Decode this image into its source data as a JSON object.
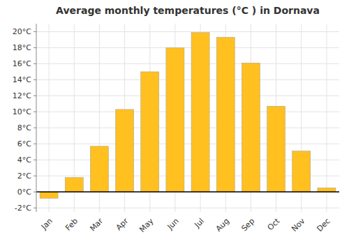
{
  "chart_data": {
    "type": "bar",
    "title": "Average monthly temperatures (°C ) in Dornava",
    "categories": [
      "Jan",
      "Feb",
      "Mar",
      "Apr",
      "May",
      "Jun",
      "Jul",
      "Aug",
      "Sep",
      "Oct",
      "Nov",
      "Dec"
    ],
    "values": [
      -0.8,
      1.8,
      5.7,
      10.3,
      15.0,
      18.0,
      19.9,
      19.3,
      16.1,
      10.7,
      5.1,
      0.5
    ],
    "color": "#FFC020",
    "ylim": [
      -2.5,
      21
    ],
    "yticks": [
      {
        "value": -2,
        "label": "-2°C"
      },
      {
        "value": 0,
        "label": "0°C"
      },
      {
        "value": 2,
        "label": "2°C"
      },
      {
        "value": 4,
        "label": "4°C"
      },
      {
        "value": 6,
        "label": "6°C"
      },
      {
        "value": 8,
        "label": "8°C"
      },
      {
        "value": 10,
        "label": "10°C"
      },
      {
        "value": 12,
        "label": "12°C"
      },
      {
        "value": 14,
        "label": "14°C"
      },
      {
        "value": 16,
        "label": "16°C"
      },
      {
        "value": 18,
        "label": "18°C"
      },
      {
        "value": 20,
        "label": "20°C"
      }
    ],
    "grid": true
  }
}
